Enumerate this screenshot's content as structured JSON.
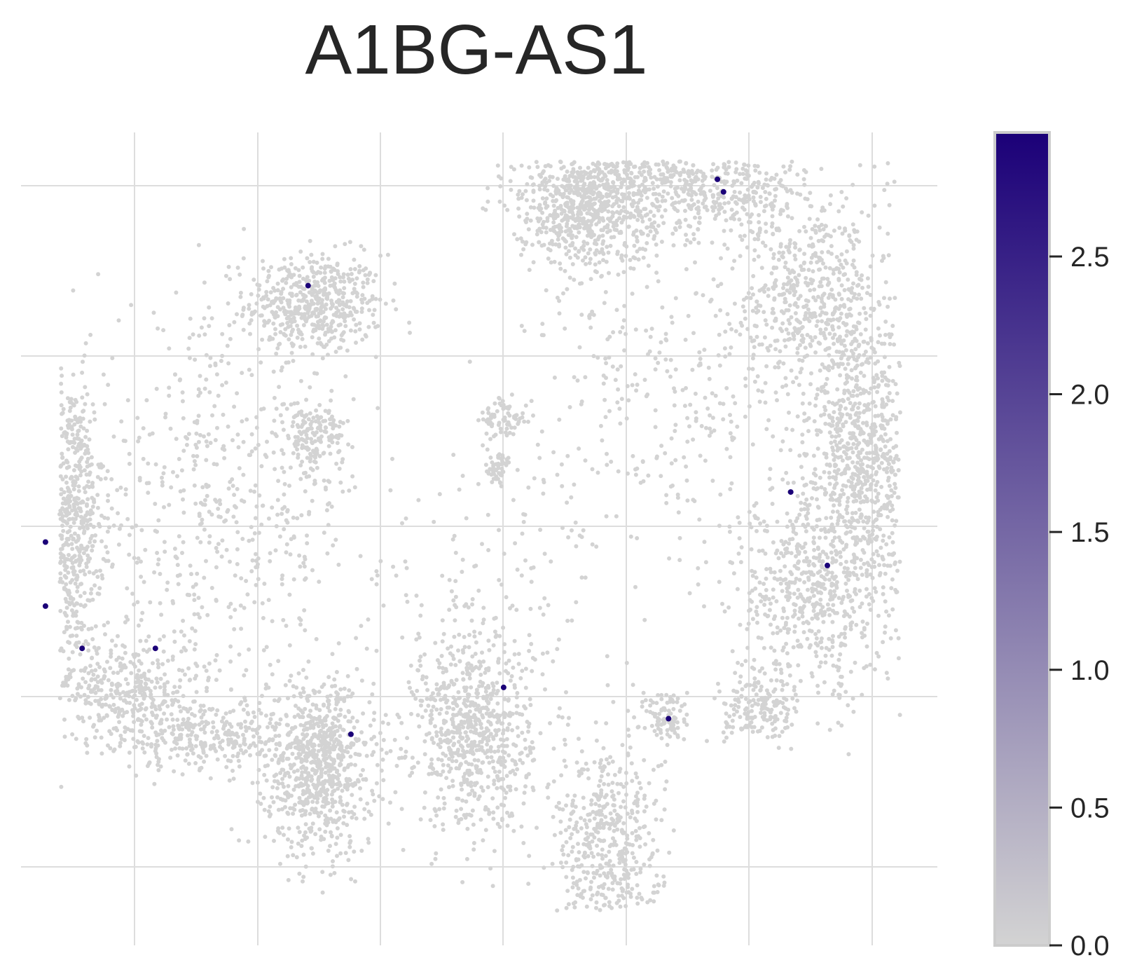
{
  "chart_data": {
    "type": "scatter",
    "title": "A1BG-AS1",
    "xlabel": "",
    "ylabel": "",
    "x_ticks_shown": false,
    "y_ticks_shown": false,
    "grid": true,
    "xlim": [
      -1.0,
      6.5
    ],
    "ylim": [
      -0.6,
      4.6
    ],
    "colormap": {
      "low": "#d3d3d3",
      "high": "#1b0078"
    },
    "colorbar": {
      "min": 0.0,
      "max": 2.95,
      "ticks": [
        0.0,
        0.5,
        1.0,
        1.5,
        2.0,
        2.5
      ],
      "tick_labels": [
        "0.0",
        "0.5",
        "1.0",
        "1.5",
        "2.0",
        "2.5"
      ]
    },
    "point_colors": {
      "background": "#d3d3d3",
      "highlight": "#1b0078"
    },
    "clusters": [
      {
        "cx": 1.4,
        "cy": 3.5,
        "sx": 0.28,
        "sy": 0.16,
        "n": 520
      },
      {
        "cx": -0.6,
        "cy": 2.15,
        "sx": 0.14,
        "sy": 0.45,
        "n": 650
      },
      {
        "cx": -0.2,
        "cy": 1.05,
        "sx": 0.32,
        "sy": 0.18,
        "n": 380
      },
      {
        "cx": 0.5,
        "cy": 0.75,
        "sx": 0.35,
        "sy": 0.12,
        "n": 320
      },
      {
        "cx": 1.45,
        "cy": 0.55,
        "sx": 0.22,
        "sy": 0.28,
        "n": 780
      },
      {
        "cx": 0.6,
        "cy": 2.2,
        "sx": 0.6,
        "sy": 0.6,
        "n": 550
      },
      {
        "cx": 1.4,
        "cy": 2.65,
        "sx": 0.12,
        "sy": 0.12,
        "n": 160
      },
      {
        "cx": 2.7,
        "cy": 0.75,
        "sx": 0.24,
        "sy": 0.3,
        "n": 700
      },
      {
        "cx": 2.95,
        "cy": 2.75,
        "sx": 0.1,
        "sy": 0.08,
        "n": 70
      },
      {
        "cx": 2.9,
        "cy": 2.45,
        "sx": 0.06,
        "sy": 0.05,
        "n": 50
      },
      {
        "cx": 2.75,
        "cy": 1.6,
        "sx": 0.55,
        "sy": 0.5,
        "n": 180
      },
      {
        "cx": 3.8,
        "cy": 0.05,
        "sx": 0.22,
        "sy": 0.35,
        "n": 520
      },
      {
        "cx": 4.3,
        "cy": 0.85,
        "sx": 0.09,
        "sy": 0.1,
        "n": 90
      },
      {
        "cx": 3.6,
        "cy": 4.15,
        "sx": 0.28,
        "sy": 0.2,
        "n": 750
      },
      {
        "cx": 4.5,
        "cy": 4.3,
        "sx": 0.5,
        "sy": 0.2,
        "n": 750
      },
      {
        "cx": 5.5,
        "cy": 3.55,
        "sx": 0.3,
        "sy": 0.3,
        "n": 550
      },
      {
        "cx": 5.9,
        "cy": 2.55,
        "sx": 0.22,
        "sy": 0.4,
        "n": 750
      },
      {
        "cx": 5.5,
        "cy": 1.65,
        "sx": 0.35,
        "sy": 0.35,
        "n": 650
      },
      {
        "cx": 5.05,
        "cy": 0.9,
        "sx": 0.15,
        "sy": 0.1,
        "n": 160
      },
      {
        "cx": 4.3,
        "cy": 3.0,
        "sx": 0.6,
        "sy": 0.5,
        "n": 320
      }
    ],
    "highlighted_points": [
      {
        "x": 1.35,
        "y": 3.62,
        "value": 2.95
      },
      {
        "x": -0.8,
        "y": 1.98,
        "value": 2.95
      },
      {
        "x": -0.8,
        "y": 1.57,
        "value": 2.95
      },
      {
        "x": -0.5,
        "y": 1.3,
        "value": 2.95
      },
      {
        "x": 0.1,
        "y": 1.3,
        "value": 2.95
      },
      {
        "x": 1.7,
        "y": 0.75,
        "value": 2.95
      },
      {
        "x": 2.95,
        "y": 1.05,
        "value": 2.95
      },
      {
        "x": 4.3,
        "y": 0.85,
        "value": 2.95
      },
      {
        "x": 4.7,
        "y": 4.3,
        "value": 2.95
      },
      {
        "x": 4.75,
        "y": 4.22,
        "value": 2.95
      },
      {
        "x": 5.3,
        "y": 2.3,
        "value": 2.95
      },
      {
        "x": 5.6,
        "y": 1.83,
        "value": 2.95
      }
    ]
  }
}
